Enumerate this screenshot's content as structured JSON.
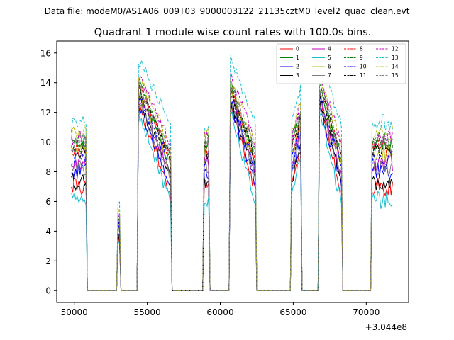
{
  "chart_data": {
    "type": "line",
    "suptitle": "Data file: modeM0/AS1A06_009T03_9000003122_21135cztM0_level2_quad_clean.evt",
    "title": "Quadrant 1 module wise count rates with 100.0s bins.",
    "xlabel": "",
    "ylabel": "",
    "x_offset_label": "+3.044e8",
    "xlim": [
      48800,
      72900
    ],
    "ylim": [
      -0.8,
      16.8
    ],
    "xticks": [
      50000,
      55000,
      60000,
      65000,
      70000
    ],
    "xtick_labels": [
      "50000",
      "55000",
      "60000",
      "65000",
      "70000"
    ],
    "yticks": [
      0,
      2,
      4,
      6,
      8,
      10,
      12,
      14,
      16
    ],
    "ytick_labels": [
      "0",
      "2",
      "4",
      "6",
      "8",
      "10",
      "12",
      "14",
      "16"
    ],
    "legend_position": "upper right",
    "bin_seconds": 100,
    "segments": [
      {
        "start": 49800,
        "end": 50800,
        "shape": "flat"
      },
      {
        "start": 53000,
        "end": 53100,
        "shape": "spike"
      },
      {
        "start": 54400,
        "end": 56600,
        "shape": "decay"
      },
      {
        "start": 58900,
        "end": 59200,
        "shape": "flat"
      },
      {
        "start": 60700,
        "end": 62400,
        "shape": "decay"
      },
      {
        "start": 64900,
        "end": 65500,
        "shape": "rise"
      },
      {
        "start": 66800,
        "end": 68300,
        "shape": "decay"
      },
      {
        "start": 70400,
        "end": 71800,
        "shape": "flat"
      }
    ],
    "series": [
      {
        "name": "0",
        "color": "#ff0000",
        "dash": "solid",
        "start_level": 7.0,
        "peak": 12.6,
        "decay_end": 6.5
      },
      {
        "name": "1",
        "color": "#008000",
        "dash": "solid",
        "start_level": 9.8,
        "peak": 13.8,
        "decay_end": 8.6
      },
      {
        "name": "2",
        "color": "#0000ff",
        "dash": "solid",
        "start_level": 8.0,
        "peak": 12.4,
        "decay_end": 7.3
      },
      {
        "name": "3",
        "color": "#000000",
        "dash": "solid",
        "start_level": 7.3,
        "peak": 12.9,
        "decay_end": 7.6
      },
      {
        "name": "4",
        "color": "#bf00bf",
        "dash": "solid",
        "start_level": 8.6,
        "peak": 13.2,
        "decay_end": 7.9
      },
      {
        "name": "5",
        "color": "#17becf",
        "dash": "solid",
        "start_level": 6.1,
        "peak": 12.0,
        "decay_end": 5.9
      },
      {
        "name": "6",
        "color": "#bcbd22",
        "dash": "solid",
        "start_level": 9.3,
        "peak": 13.5,
        "decay_end": 8.3
      },
      {
        "name": "7",
        "color": "#7f7f7f",
        "dash": "solid",
        "start_level": 8.3,
        "peak": 12.7,
        "decay_end": 7.8
      },
      {
        "name": "8",
        "color": "#ff0000",
        "dash": "dashed",
        "start_level": 9.6,
        "peak": 13.9,
        "decay_end": 8.9
      },
      {
        "name": "9",
        "color": "#008000",
        "dash": "dashed",
        "start_level": 10.1,
        "peak": 14.1,
        "decay_end": 9.1
      },
      {
        "name": "10",
        "color": "#0000ff",
        "dash": "dashed",
        "start_level": 8.8,
        "peak": 13.1,
        "decay_end": 8.4
      },
      {
        "name": "11",
        "color": "#000000",
        "dash": "dashed",
        "start_level": 9.4,
        "peak": 13.6,
        "decay_end": 8.9
      },
      {
        "name": "12",
        "color": "#bf00bf",
        "dash": "dashed",
        "start_level": 10.3,
        "peak": 14.5,
        "decay_end": 9.9
      },
      {
        "name": "13",
        "color": "#17becf",
        "dash": "dashed",
        "start_level": 11.3,
        "peak": 15.6,
        "decay_end": 11.3
      },
      {
        "name": "14",
        "color": "#bcbd22",
        "dash": "dashed",
        "start_level": 10.6,
        "peak": 14.4,
        "decay_end": 9.8
      },
      {
        "name": "15",
        "color": "#7f7f7f",
        "dash": "dashed",
        "start_level": 10.0,
        "peak": 13.9,
        "decay_end": 9.3
      }
    ]
  }
}
